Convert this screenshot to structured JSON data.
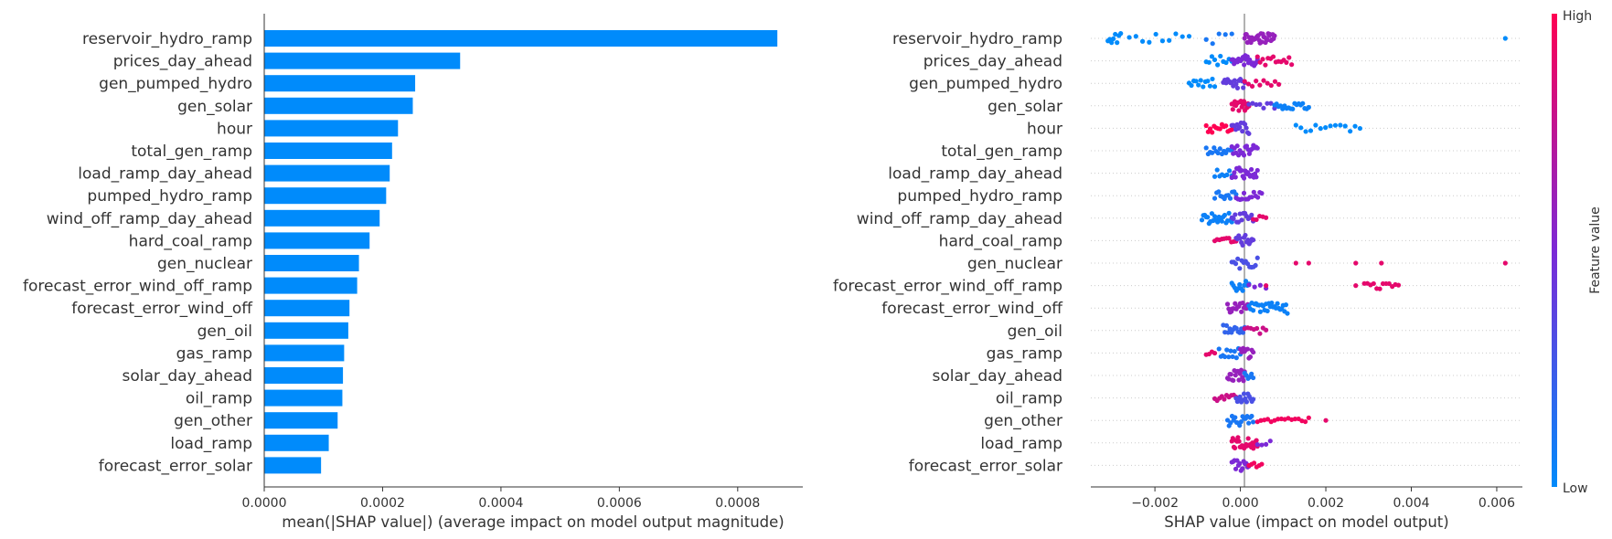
{
  "colors": {
    "bar": "#008bfb",
    "low": "#008bfb",
    "mid": "#7c29d6",
    "high": "#ff0052",
    "axis": "#333333",
    "grid": "#cccccc"
  },
  "chart_data": [
    {
      "type": "bar",
      "orientation": "horizontal",
      "categories": [
        "reservoir_hydro_ramp",
        "prices_day_ahead",
        "gen_pumped_hydro",
        "gen_solar",
        "hour",
        "total_gen_ramp",
        "load_ramp_day_ahead",
        "pumped_hydro_ramp",
        "wind_off_ramp_day_ahead",
        "hard_coal_ramp",
        "gen_nuclear",
        "forecast_error_wind_off_ramp",
        "forecast_error_wind_off",
        "gen_oil",
        "gas_ramp",
        "solar_day_ahead",
        "oil_ramp",
        "gen_other",
        "load_ramp",
        "forecast_error_solar"
      ],
      "values": [
        0.000867,
        0.000331,
        0.000255,
        0.000251,
        0.000226,
        0.000216,
        0.000212,
        0.000206,
        0.000195,
        0.000178,
        0.00016,
        0.000157,
        0.000144,
        0.000142,
        0.000135,
        0.000133,
        0.000132,
        0.000124,
        0.000109,
        9.6e-05
      ],
      "xlabel": "mean(|SHAP value|) (average impact on model output magnitude)",
      "ylabel": "",
      "xlim": [
        0,
        0.00091
      ],
      "xticks": [
        "0.0000",
        "0.0002",
        "0.0004",
        "0.0006",
        "0.0008"
      ],
      "grid": false
    },
    {
      "type": "scatter",
      "subtype": "beeswarm",
      "categories": [
        "reservoir_hydro_ramp",
        "prices_day_ahead",
        "gen_pumped_hydro",
        "gen_solar",
        "hour",
        "total_gen_ramp",
        "load_ramp_day_ahead",
        "pumped_hydro_ramp",
        "wind_off_ramp_day_ahead",
        "hard_coal_ramp",
        "gen_nuclear",
        "forecast_error_wind_off_ramp",
        "forecast_error_wind_off",
        "gen_oil",
        "gas_ramp",
        "solar_day_ahead",
        "oil_ramp",
        "gen_other",
        "load_ramp",
        "forecast_error_solar"
      ],
      "xlabel": "SHAP value (impact on model output)",
      "ylabel": "",
      "xlim": [
        -0.0035,
        0.0066
      ],
      "xticks": [
        "−0.002",
        "0.000",
        "0.002",
        "0.004",
        "0.006"
      ],
      "grid": false,
      "colorbar": {
        "label": "Feature value",
        "high": "High",
        "low": "Low"
      },
      "rows": [
        {
          "segments": [
            [
              -0.0031,
              -0.0028,
              0.0,
              8,
              1
            ],
            [
              -0.0026,
              -0.0012,
              0.0,
              10,
              0.95
            ],
            [
              -0.0008,
              -0.0002,
              0.1,
              5,
              1
            ],
            [
              0.0001,
              0.0008,
              0.6,
              34,
              0.9
            ]
          ],
          "points": [
            [
              0.0062,
              0.0
            ]
          ]
        },
        {
          "segments": [
            [
              -0.0008,
              -0.0002,
              0.0,
              10,
              0.9
            ],
            [
              -0.0002,
              0.0004,
              0.5,
              24,
              1
            ],
            [
              0.0004,
              0.0012,
              0.9,
              14,
              0.8
            ]
          ]
        },
        {
          "segments": [
            [
              -0.0012,
              -0.0006,
              0.0,
              12,
              0.8
            ],
            [
              -0.0004,
              0.0001,
              0.4,
              16,
              1
            ],
            [
              0.0001,
              0.0009,
              0.9,
              10,
              0.6
            ]
          ]
        },
        {
          "segments": [
            [
              -0.0002,
              0.0002,
              0.9,
              18,
              1
            ],
            [
              0.0002,
              0.0008,
              0.4,
              8,
              0.6
            ],
            [
              0.0008,
              0.0016,
              0.05,
              18,
              0.6
            ]
          ]
        },
        {
          "segments": [
            [
              -0.0008,
              -0.0002,
              1.0,
              14,
              0.8
            ],
            [
              -0.0002,
              0.0002,
              0.4,
              14,
              1
            ],
            [
              0.0013,
              0.0028,
              0.0,
              14,
              0.6
            ]
          ]
        },
        {
          "segments": [
            [
              -0.0008,
              -0.0002,
              0.1,
              14,
              0.6
            ],
            [
              -0.0002,
              0.0004,
              0.5,
              20,
              1
            ]
          ]
        },
        {
          "segments": [
            [
              -0.0006,
              -0.0002,
              0.05,
              8,
              0.7
            ],
            [
              -0.0002,
              0.0004,
              0.5,
              22,
              1
            ]
          ]
        },
        {
          "segments": [
            [
              -0.0006,
              -0.0001,
              0.1,
              12,
              0.8
            ],
            [
              -0.0001,
              0.0005,
              0.5,
              14,
              0.9
            ]
          ]
        },
        {
          "segments": [
            [
              -0.0009,
              -0.0002,
              0.05,
              22,
              1
            ],
            [
              -0.0002,
              0.0003,
              0.4,
              14,
              1
            ],
            [
              0.0003,
              0.0006,
              0.9,
              5,
              0.5
            ]
          ]
        },
        {
          "segments": [
            [
              -0.0006,
              -0.0001,
              0.9,
              10,
              0.6
            ],
            [
              -0.0001,
              0.0003,
              0.4,
              14,
              1
            ]
          ]
        },
        {
          "segments": [
            [
              -0.0002,
              0.0004,
              0.3,
              14,
              1
            ]
          ],
          "points": [
            [
              0.0013,
              0.9
            ],
            [
              0.0016,
              0.9
            ],
            [
              0.0027,
              0.9
            ],
            [
              0.0033,
              0.9
            ],
            [
              0.0062,
              0.9
            ]
          ]
        },
        {
          "segments": [
            [
              -0.0002,
              0.0002,
              0.05,
              12,
              1
            ],
            [
              0.0002,
              0.0006,
              0.5,
              4,
              0.5
            ],
            [
              0.0029,
              0.0037,
              0.9,
              12,
              0.6
            ]
          ],
          "points": [
            [
              0.0027,
              0.9
            ],
            [
              0.0006,
              0.9
            ]
          ]
        },
        {
          "segments": [
            [
              -0.0003,
              0.0002,
              0.6,
              18,
              1
            ],
            [
              0.0002,
              0.0011,
              0.05,
              28,
              1
            ]
          ]
        },
        {
          "segments": [
            [
              -0.0004,
              0.0001,
              0.2,
              14,
              1
            ],
            [
              0.0001,
              0.0006,
              0.8,
              8,
              0.6
            ]
          ]
        },
        {
          "segments": [
            [
              -0.0008,
              -0.0006,
              0.9,
              4,
              0.4
            ],
            [
              -0.0005,
              0.0,
              0.1,
              12,
              1
            ],
            [
              0.0,
              0.0003,
              0.6,
              10,
              1
            ]
          ]
        },
        {
          "segments": [
            [
              -0.0003,
              0.0001,
              0.6,
              16,
              1
            ],
            [
              0.0001,
              0.0003,
              0.1,
              6,
              0.6
            ]
          ]
        },
        {
          "segments": [
            [
              -0.0006,
              -0.0001,
              0.8,
              10,
              0.6
            ],
            [
              -0.0001,
              0.0003,
              0.3,
              14,
              1
            ]
          ]
        },
        {
          "segments": [
            [
              -0.0003,
              0.0003,
              0.1,
              18,
              1
            ],
            [
              0.0004,
              0.0016,
              0.95,
              16,
              0.5
            ]
          ],
          "points": [
            [
              0.002,
              0.9
            ]
          ]
        },
        {
          "segments": [
            [
              -0.0002,
              0.0004,
              0.9,
              26,
              1
            ],
            [
              0.0004,
              0.0007,
              0.5,
              4,
              0.5
            ]
          ]
        },
        {
          "segments": [
            [
              -0.0002,
              0.0002,
              0.5,
              14,
              1
            ],
            [
              0.0002,
              0.0005,
              0.95,
              6,
              0.5
            ]
          ]
        }
      ]
    }
  ]
}
